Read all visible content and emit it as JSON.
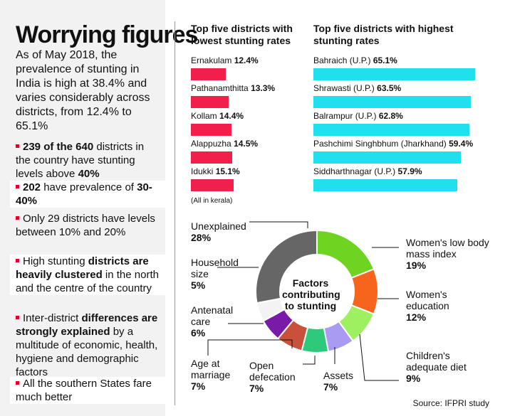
{
  "left_panel": {
    "title": "Worrying figures",
    "intro": "As of May 2018, the prevalence of stunting in India is high at 38.4% and varies considerably across districts, from 12.4% to 65.1%",
    "bullets": [
      {
        "parts": [
          {
            "t": "239 of the 640",
            "b": true
          },
          {
            "t": " districts in the country have stunting levels above ",
            "b": false
          },
          {
            "t": "40%",
            "b": true
          }
        ]
      },
      {
        "parts": [
          {
            "t": "202",
            "b": true
          },
          {
            "t": " have prevalence of ",
            "b": false
          },
          {
            "t": "30-40%",
            "b": true
          }
        ]
      },
      {
        "parts": [
          {
            "t": "Only 29 districts have levels between 10% and 20%",
            "b": false
          }
        ]
      },
      {
        "parts": [
          {
            "t": "High stunting ",
            "b": false
          },
          {
            "t": "districts are heavily clustered",
            "b": true
          },
          {
            "t": " in the north and the centre of the country",
            "b": false
          }
        ]
      },
      {
        "parts": [
          {
            "t": "Inter-district ",
            "b": false
          },
          {
            "t": "differences are strongly explained",
            "b": true
          },
          {
            "t": " by a multitude of economic, health, hygiene and demographic factors",
            "b": false
          }
        ]
      },
      {
        "parts": [
          {
            "t": "All the southern States fare much better",
            "b": false
          }
        ]
      }
    ]
  },
  "chart_data": [
    {
      "type": "bar",
      "orientation": "horizontal",
      "title": "Top five districts with lowest stunting rates",
      "categories": [
        "Ernakulam",
        "Pathanamthitta",
        "Kollam",
        "Alappuzha",
        "Idukki"
      ],
      "values": [
        12.4,
        13.3,
        14.4,
        14.5,
        15.1
      ],
      "value_labels": [
        "12.4%",
        "13.3%",
        "14.4%",
        "14.5%",
        "15.1%"
      ],
      "note": "(All in kerala)",
      "color": "#f0204a"
    },
    {
      "type": "bar",
      "orientation": "horizontal",
      "title": "Top five districts with highest stunting rates",
      "categories": [
        "Bahraich (U.P.)",
        "Shrawasti (U.P.)",
        "Balrampur (U.P.)",
        "Pashchimi Singhbhum (Jharkhand)",
        "Siddharthnagar (U.P.)"
      ],
      "values": [
        65.1,
        63.5,
        62.8,
        59.4,
        57.9
      ],
      "value_labels": [
        "65.1%",
        "63.5%",
        "62.8%",
        "59.4%",
        "57.9%"
      ],
      "color": "#20e0ee"
    },
    {
      "type": "pie",
      "title": "Factors contributing to stunting",
      "slices": [
        {
          "label": "Women's low body mass index",
          "value": 19,
          "display": "19%",
          "color": "#6ed321"
        },
        {
          "label": "Women's education",
          "value": 12,
          "display": "12%",
          "color": "#f7641c"
        },
        {
          "label": "Children's adequate diet",
          "value": 9,
          "display": "9%",
          "color": "#9ef060"
        },
        {
          "label": "Assets",
          "value": 7,
          "display": "7%",
          "color": "#a99af2"
        },
        {
          "label": "Open defecation",
          "value": 7,
          "display": "7%",
          "color": "#2ec97a"
        },
        {
          "label": "Age at marriage",
          "value": 7,
          "display": "7%",
          "color": "#c9503a"
        },
        {
          "label": "Antenatal care",
          "value": 6,
          "display": "6%",
          "color": "#7a1aa8"
        },
        {
          "label": "Household size",
          "value": 5,
          "display": "5%",
          "color": "#f3f3f3"
        },
        {
          "label": "Unexplained",
          "value": 28,
          "display": "28%",
          "color": "#666666"
        }
      ]
    }
  ],
  "source": "Source: IFPRI study"
}
